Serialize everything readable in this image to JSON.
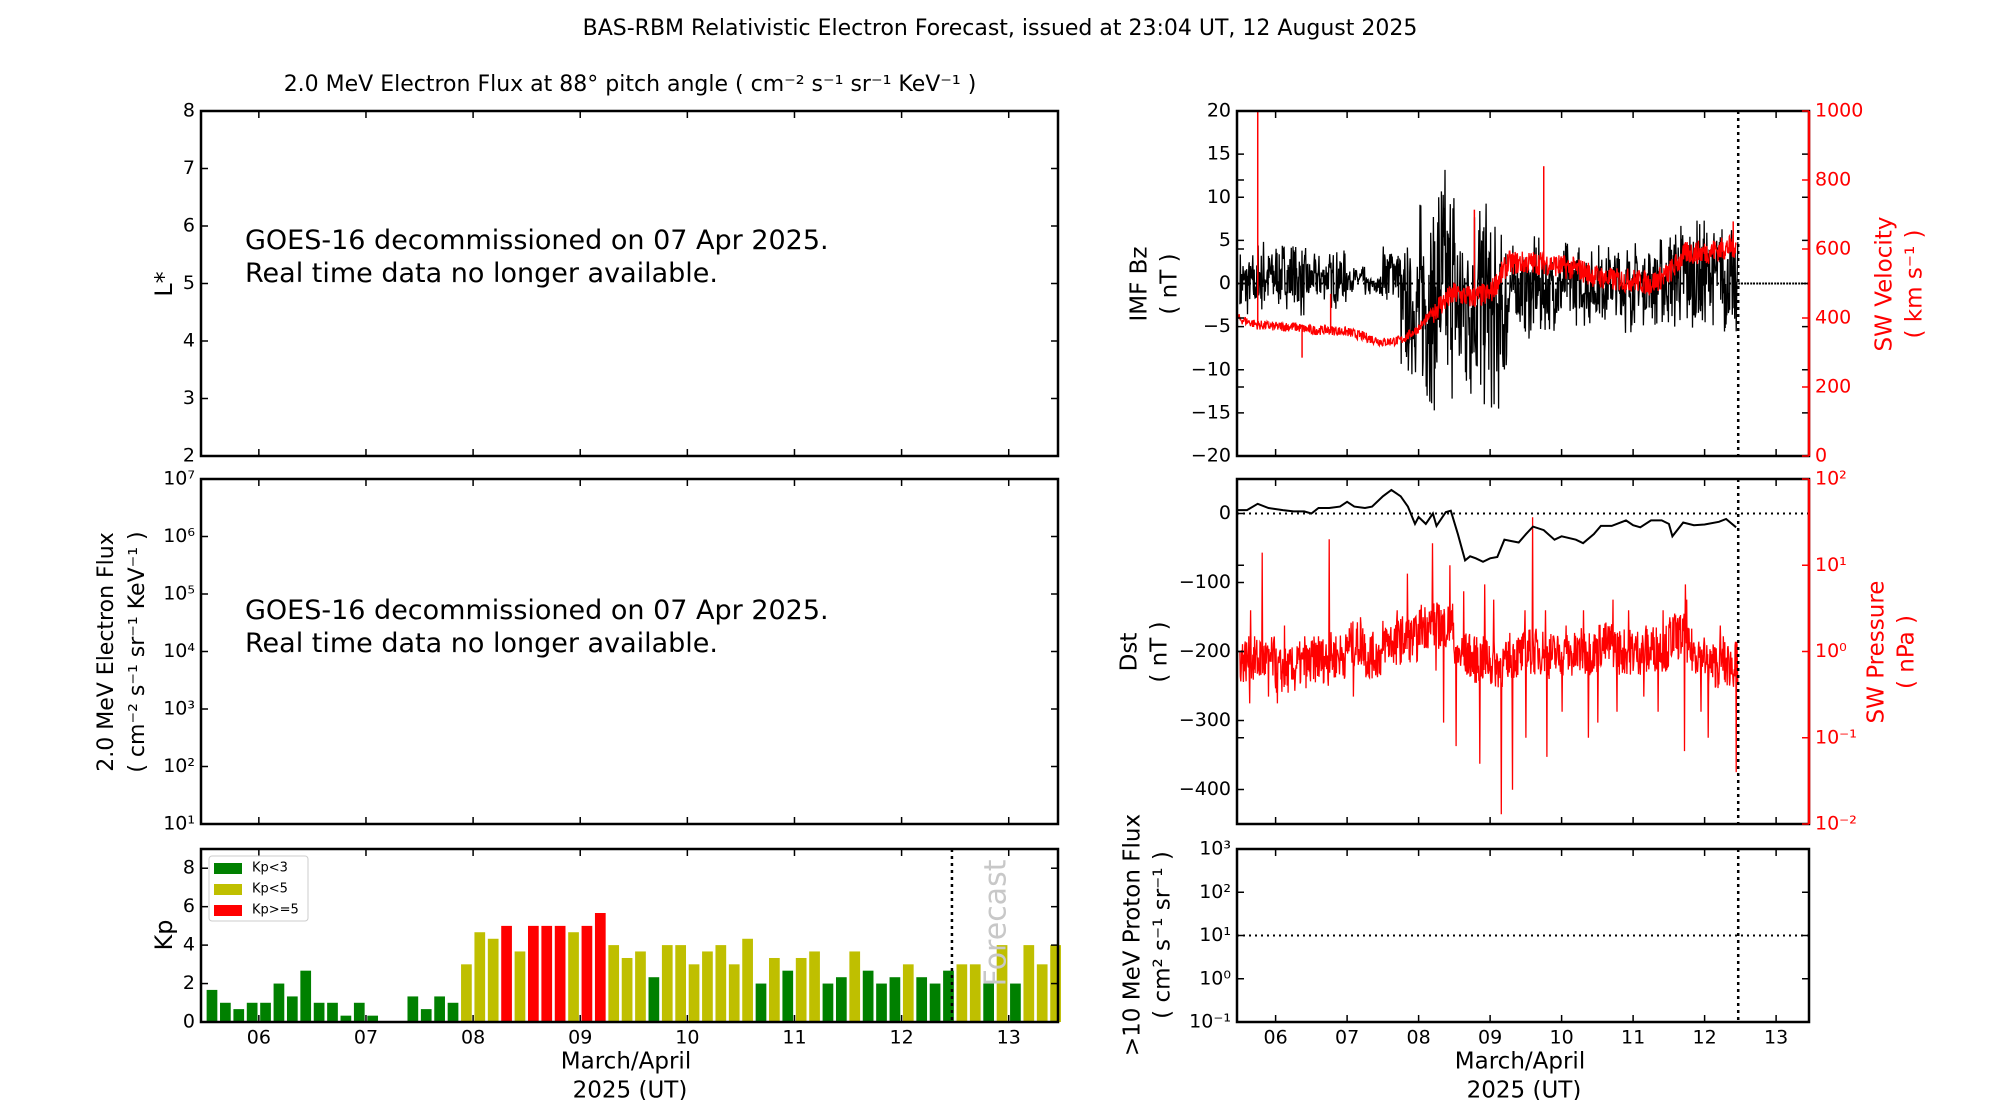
{
  "title": "BAS-RBM Relativistic Electron Forecast, issued at 23:04 UT, 12 August 2025",
  "notice": {
    "line1": "GOES-16 decommissioned on 07 Apr 2025.",
    "line2": "Real time data no longer available."
  },
  "colors": {
    "kp_low": "#008000",
    "kp_mid": "#bfbf00",
    "kp_high": "#ff0000",
    "secondary_axis": "#ff0000",
    "forecast_text": "#c8c8c8"
  },
  "chart_data": [
    {
      "id": "lstar",
      "type": "heatmap",
      "title": "2.0 MeV Electron Flux at 88° pitch angle ( cm⁻² s⁻¹ sr⁻¹ KeV⁻¹ )",
      "ylabel": "L*",
      "ylim": [
        2,
        8
      ],
      "yticks": [
        "2",
        "3",
        "4",
        "5",
        "6",
        "7",
        "8"
      ],
      "xlim": [
        5.46,
        13.46
      ],
      "values": []
    },
    {
      "id": "electron_flux",
      "type": "line",
      "ylabel": "2.0 MeV Electron Flux",
      "ylabel2": "( cm⁻² s⁻¹ sr⁻¹ KeV⁻¹ )",
      "yscale": "log",
      "ylim": [
        10,
        10000000
      ],
      "yticks": [
        "10¹",
        "10²",
        "10³",
        "10⁴",
        "10⁵",
        "10⁶",
        "10⁷"
      ],
      "xlim": [
        5.46,
        13.46
      ],
      "values": []
    },
    {
      "id": "kp",
      "type": "bar",
      "ylabel": "Kp",
      "ylim": [
        0,
        9
      ],
      "yticks": [
        "0",
        "2",
        "4",
        "6",
        "8"
      ],
      "xlim": [
        5.46,
        13.46
      ],
      "xticks": [
        "06",
        "07",
        "08",
        "09",
        "10",
        "11",
        "12",
        "13"
      ],
      "xlabel": "March/April",
      "xlabel2": "2025 (UT)",
      "legend": {
        "position": "top-left",
        "entries": [
          "Kp<3",
          "Kp<5",
          "Kp>=5"
        ]
      },
      "forecast_label": "Forecast",
      "forecast_start": 12.47,
      "bar_start": 5.5625,
      "bar_step_days": 0.125,
      "values": [
        1.67,
        1.0,
        0.67,
        1.0,
        1.0,
        2.0,
        1.33,
        2.67,
        1.0,
        1.0,
        0.33,
        1.0,
        0.33,
        0,
        0,
        1.33,
        0.67,
        1.33,
        1.0,
        3.0,
        4.67,
        4.33,
        5.0,
        3.67,
        5.0,
        5.0,
        5.0,
        4.67,
        5.0,
        5.67,
        4.0,
        3.33,
        3.67,
        2.33,
        4.0,
        4.0,
        3.0,
        3.67,
        4.0,
        3.0,
        4.33,
        2.0,
        3.33,
        2.67,
        3.33,
        3.67,
        2.0,
        2.33,
        3.67,
        2.67,
        2.0,
        2.33,
        3.0,
        2.33,
        2.0,
        2.67,
        3.0,
        3.0,
        2.0,
        4.0,
        2.0,
        4.0,
        3.0,
        4.0
      ]
    },
    {
      "id": "imf_sw_velocity",
      "type": "line",
      "ylabel": "IMF Bz",
      "ylabel_unit": "( nT )",
      "ylim": [
        -20,
        20
      ],
      "yticks": [
        "−20",
        "−15",
        "−10",
        "−5",
        "0",
        "5",
        "10",
        "15",
        "20"
      ],
      "y2label": "SW Velocity",
      "y2label_unit": "( km s⁻¹ )",
      "y2lim": [
        0,
        1000
      ],
      "y2ticks": [
        "0",
        "200",
        "400",
        "600",
        "800",
        "1000"
      ],
      "xlim": [
        5.46,
        13.46
      ],
      "forecast_start": 12.47,
      "series": [
        {
          "name": "IMF Bz",
          "color": "#000000",
          "bins_start_min_max": [
            [
              5.5,
              -4,
              4
            ],
            [
              5.75,
              -3.5,
              5.5
            ],
            [
              6.0,
              -3,
              5
            ],
            [
              6.25,
              -4,
              4.5
            ],
            [
              6.5,
              -2,
              3.5
            ],
            [
              6.75,
              -3,
              4
            ],
            [
              7.0,
              -1,
              2
            ],
            [
              7.25,
              -1.5,
              1
            ],
            [
              7.5,
              -2,
              5
            ],
            [
              7.75,
              -11,
              5
            ],
            [
              8.0,
              -15,
              10
            ],
            [
              8.25,
              -14,
              14
            ],
            [
              8.5,
              -14,
              9
            ],
            [
              8.75,
              -15,
              12
            ],
            [
              9.0,
              -15,
              7
            ],
            [
              9.25,
              -6,
              5
            ],
            [
              9.5,
              -6.5,
              5.5
            ],
            [
              9.75,
              -5.5,
              4
            ],
            [
              10.0,
              -5,
              5
            ],
            [
              10.25,
              -5,
              4
            ],
            [
              10.5,
              -4.5,
              5
            ],
            [
              10.75,
              -6,
              5.5
            ],
            [
              11.0,
              -5,
              5
            ],
            [
              11.25,
              -5,
              5.5
            ],
            [
              11.5,
              -5.5,
              7.5
            ],
            [
              11.75,
              -6.5,
              7.5
            ],
            [
              12.0,
              -5,
              7
            ],
            [
              12.25,
              -6,
              6.5
            ]
          ]
        },
        {
          "name": "SW Velocity",
          "color": "#ff0000",
          "axis": "right",
          "mean": [
            [
              5.46,
              400
            ],
            [
              5.75,
              380
            ],
            [
              6.0,
              375
            ],
            [
              6.25,
              375
            ],
            [
              6.5,
              365
            ],
            [
              6.75,
              365
            ],
            [
              7.0,
              360
            ],
            [
              7.25,
              345
            ],
            [
              7.5,
              330
            ],
            [
              7.75,
              335
            ],
            [
              8.0,
              370
            ],
            [
              8.25,
              430
            ],
            [
              8.5,
              470
            ],
            [
              8.75,
              460
            ],
            [
              9.0,
              470
            ],
            [
              9.25,
              560
            ],
            [
              9.5,
              560
            ],
            [
              9.75,
              560
            ],
            [
              10.0,
              550
            ],
            [
              10.25,
              540
            ],
            [
              10.5,
              520
            ],
            [
              10.75,
              510
            ],
            [
              11.0,
              510
            ],
            [
              11.25,
              500
            ],
            [
              11.5,
              530
            ],
            [
              11.75,
              590
            ],
            [
              12.0,
              590
            ],
            [
              12.25,
              600
            ],
            [
              12.45,
              610
            ]
          ],
          "spikes": [
            [
              5.75,
              1000
            ],
            [
              6.37,
              285
            ],
            [
              6.77,
              470
            ],
            [
              8.78,
              714
            ],
            [
              9.75,
              840
            ],
            [
              12.4,
              680
            ]
          ]
        }
      ]
    },
    {
      "id": "dst_sw_pressure",
      "type": "line",
      "ylabel": "Dst",
      "ylabel_unit": "( nT )",
      "ylim": [
        -450,
        50
      ],
      "yticks": [
        "−400",
        "−300",
        "−200",
        "−100",
        "0"
      ],
      "y2label": "SW Pressure",
      "y2label_unit": "( nPa )",
      "y2scale": "log",
      "y2lim": [
        0.01,
        100
      ],
      "y2ticks": [
        "10⁻²",
        "10⁻¹",
        "10⁰",
        "10¹",
        "10²"
      ],
      "xlim": [
        5.46,
        13.46
      ],
      "forecast_start": 12.47,
      "series": [
        {
          "name": "Dst",
          "color": "#000000",
          "points": [
            [
              5.46,
              5
            ],
            [
              5.6,
              5
            ],
            [
              5.75,
              14
            ],
            [
              5.9,
              8
            ],
            [
              6.1,
              5
            ],
            [
              6.25,
              3
            ],
            [
              6.4,
              3
            ],
            [
              6.5,
              0
            ],
            [
              6.6,
              8
            ],
            [
              6.75,
              8
            ],
            [
              6.9,
              10
            ],
            [
              7.0,
              17
            ],
            [
              7.1,
              10
            ],
            [
              7.25,
              8
            ],
            [
              7.35,
              10
            ],
            [
              7.5,
              25
            ],
            [
              7.62,
              34
            ],
            [
              7.75,
              25
            ],
            [
              7.85,
              10
            ],
            [
              7.95,
              -15
            ],
            [
              8.0,
              -5
            ],
            [
              8.1,
              -15
            ],
            [
              8.2,
              0
            ],
            [
              8.25,
              -18
            ],
            [
              8.38,
              2
            ],
            [
              8.45,
              4
            ],
            [
              8.55,
              -30
            ],
            [
              8.65,
              -68
            ],
            [
              8.72,
              -62
            ],
            [
              8.8,
              -65
            ],
            [
              8.9,
              -70
            ],
            [
              9.0,
              -65
            ],
            [
              9.1,
              -63
            ],
            [
              9.2,
              -38
            ],
            [
              9.3,
              -40
            ],
            [
              9.4,
              -42
            ],
            [
              9.5,
              -30
            ],
            [
              9.6,
              -19
            ],
            [
              9.75,
              -24
            ],
            [
              9.9,
              -38
            ],
            [
              10.0,
              -33
            ],
            [
              10.2,
              -38
            ],
            [
              10.3,
              -43
            ],
            [
              10.45,
              -30
            ],
            [
              10.55,
              -18
            ],
            [
              10.7,
              -18
            ],
            [
              10.9,
              -10
            ],
            [
              11.0,
              -17
            ],
            [
              11.1,
              -20
            ],
            [
              11.25,
              -10
            ],
            [
              11.4,
              -10
            ],
            [
              11.5,
              -15
            ],
            [
              11.55,
              -33
            ],
            [
              11.7,
              -13
            ],
            [
              11.85,
              -17
            ],
            [
              12.0,
              -16
            ],
            [
              12.2,
              -12
            ],
            [
              12.3,
              -8
            ],
            [
              12.44,
              -20
            ]
          ]
        },
        {
          "name": "SW Pressure",
          "color": "#ff0000",
          "axis": "right",
          "bins_start_mean_lo_hi": [
            [
              5.5,
              0.8,
              0.25,
              3
            ],
            [
              5.75,
              0.8,
              0.3,
              14
            ],
            [
              6.0,
              0.6,
              0.25,
              2
            ],
            [
              6.25,
              0.7,
              0.35,
              1.5
            ],
            [
              6.5,
              0.8,
              0.4,
              1.5
            ],
            [
              6.75,
              0.9,
              0.5,
              20
            ],
            [
              7.0,
              1.2,
              0.3,
              2.5
            ],
            [
              7.25,
              0.9,
              0.5,
              1.5
            ],
            [
              7.5,
              1.3,
              0.7,
              3
            ],
            [
              7.75,
              1.4,
              0.8,
              8
            ],
            [
              8.0,
              2.0,
              0.6,
              18
            ],
            [
              8.25,
              2.0,
              0.15,
              10
            ],
            [
              8.5,
              0.9,
              0.08,
              5
            ],
            [
              8.75,
              0.8,
              0.05,
              6
            ],
            [
              9.0,
              0.7,
              0.013,
              4
            ],
            [
              9.25,
              0.9,
              0.025,
              3
            ],
            [
              9.5,
              1.0,
              0.1,
              36
            ],
            [
              9.75,
              0.9,
              0.06,
              3
            ],
            [
              10.0,
              0.9,
              0.2,
              2
            ],
            [
              10.25,
              1.0,
              0.1,
              3
            ],
            [
              10.5,
              1.2,
              0.15,
              4
            ],
            [
              10.75,
              1.0,
              0.2,
              3
            ],
            [
              11.0,
              1.0,
              0.3,
              2
            ],
            [
              11.25,
              1.1,
              0.2,
              3
            ],
            [
              11.5,
              1.5,
              0.07,
              6
            ],
            [
              11.75,
              1.0,
              0.2,
              4
            ],
            [
              12.0,
              0.7,
              0.1,
              2
            ],
            [
              12.25,
              0.7,
              0.04,
              1.5
            ]
          ]
        }
      ]
    },
    {
      "id": "proton_flux",
      "type": "line",
      "ylabel": ">10 MeV Proton Flux",
      "ylabel_unit": "( cm² s⁻¹ sr⁻¹ )",
      "yscale": "log",
      "ylim": [
        0.1,
        1000
      ],
      "yticks": [
        "10⁻¹",
        "10⁰",
        "10¹",
        "10²",
        "10³"
      ],
      "threshold": 10,
      "xlim": [
        5.46,
        13.46
      ],
      "xticks": [
        "06",
        "07",
        "08",
        "09",
        "10",
        "11",
        "12",
        "13"
      ],
      "xlabel": "March/April",
      "xlabel2": "2025 (UT)",
      "forecast_start": 12.47,
      "values": []
    }
  ]
}
